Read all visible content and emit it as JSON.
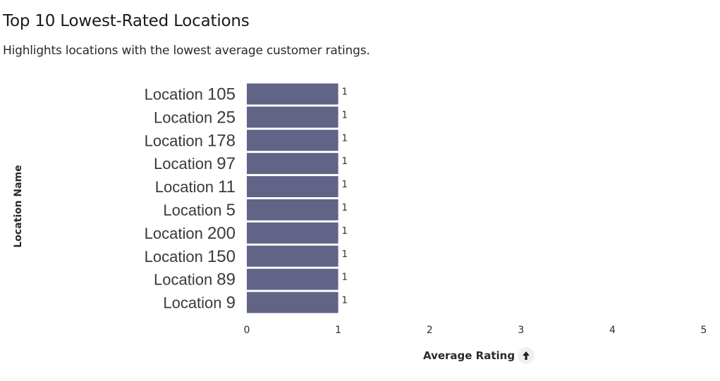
{
  "title": "Top 10 Lowest-Rated Locations",
  "subtitle": "Highlights locations with the lowest average customer ratings.",
  "colors": {
    "bar": "#616387",
    "bar_edge": "#ffffff"
  },
  "icons": {
    "sort": "arrow-up-icon"
  },
  "chart_data": {
    "type": "bar",
    "orientation": "horizontal",
    "categories": [
      "Location 105",
      "Location 25",
      "Location 178",
      "Location 97",
      "Location 11",
      "Location 5",
      "Location 200",
      "Location 150",
      "Location 89",
      "Location 9"
    ],
    "values": [
      1,
      1,
      1,
      1,
      1,
      1,
      1,
      1,
      1,
      1
    ],
    "data_labels": [
      "1",
      "1",
      "1",
      "1",
      "1",
      "1",
      "1",
      "1",
      "1",
      "1"
    ],
    "xlabel": "Average Rating",
    "ylabel": "Location Name",
    "xlim": [
      0,
      5
    ],
    "xticks": [
      0,
      1,
      2,
      3,
      4,
      5
    ],
    "grid": false,
    "sort": "ascending"
  }
}
